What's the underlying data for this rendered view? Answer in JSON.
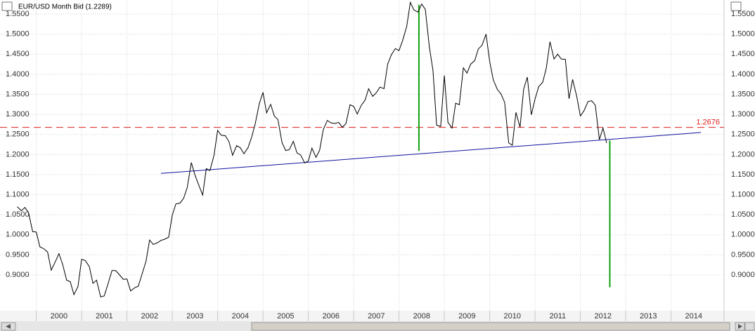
{
  "chart_data": {
    "type": "line",
    "title": "EUR/USD Month Bid (1.2289)",
    "color": "#000000",
    "x": [
      1999.58,
      1999.67,
      1999.75,
      1999.83,
      1999.92,
      2000,
      2000.08,
      2000.17,
      2000.25,
      2000.33,
      2000.42,
      2000.5,
      2000.58,
      2000.67,
      2000.75,
      2000.83,
      2000.92,
      2001,
      2001.08,
      2001.17,
      2001.25,
      2001.33,
      2001.42,
      2001.5,
      2001.58,
      2001.67,
      2001.75,
      2001.83,
      2001.92,
      2002,
      2002.08,
      2002.17,
      2002.25,
      2002.33,
      2002.42,
      2002.5,
      2002.58,
      2002.67,
      2002.75,
      2002.83,
      2002.92,
      2003,
      2003.08,
      2003.17,
      2003.25,
      2003.33,
      2003.42,
      2003.5,
      2003.58,
      2003.67,
      2003.75,
      2003.83,
      2003.92,
      2004,
      2004.08,
      2004.17,
      2004.25,
      2004.33,
      2004.42,
      2004.5,
      2004.58,
      2004.67,
      2004.75,
      2004.83,
      2004.92,
      2005,
      2005.08,
      2005.17,
      2005.25,
      2005.33,
      2005.42,
      2005.5,
      2005.58,
      2005.67,
      2005.75,
      2005.83,
      2005.92,
      2006,
      2006.08,
      2006.17,
      2006.25,
      2006.33,
      2006.42,
      2006.5,
      2006.58,
      2006.67,
      2006.75,
      2006.83,
      2006.92,
      2007,
      2007.08,
      2007.17,
      2007.25,
      2007.33,
      2007.42,
      2007.5,
      2007.58,
      2007.67,
      2007.75,
      2007.83,
      2007.92,
      2008,
      2008.08,
      2008.17,
      2008.25,
      2008.33,
      2008.42,
      2008.5,
      2008.58,
      2008.67,
      2008.75,
      2008.83,
      2008.92,
      2009,
      2009.08,
      2009.17,
      2009.25,
      2009.33,
      2009.42,
      2009.5,
      2009.58,
      2009.67,
      2009.75,
      2009.83,
      2009.92,
      2010,
      2010.08,
      2010.17,
      2010.25,
      2010.33,
      2010.42,
      2010.5,
      2010.58,
      2010.67,
      2010.75,
      2010.83,
      2010.92,
      2011,
      2011.08,
      2011.17,
      2011.25,
      2011.33,
      2011.42,
      2011.5,
      2011.58,
      2011.67,
      2011.75,
      2011.83,
      2011.92,
      2012,
      2012.08,
      2012.17,
      2012.25,
      2012.33,
      2012.42,
      2012.5,
      2012.58
    ],
    "values": [
      1.07,
      1.06,
      1.068,
      1.055,
      1.008,
      1.007,
      0.97,
      0.965,
      0.957,
      0.912,
      0.933,
      0.953,
      0.927,
      0.887,
      0.883,
      0.851,
      0.871,
      0.939,
      0.936,
      0.921,
      0.879,
      0.887,
      0.845,
      0.848,
      0.877,
      0.911,
      0.911,
      0.901,
      0.889,
      0.89,
      0.86,
      0.868,
      0.872,
      0.901,
      0.934,
      0.987,
      0.976,
      0.98,
      0.986,
      0.989,
      0.994,
      1.049,
      1.077,
      1.079,
      1.091,
      1.118,
      1.18,
      1.149,
      1.125,
      1.099,
      1.165,
      1.16,
      1.198,
      1.26,
      1.248,
      1.247,
      1.232,
      1.198,
      1.222,
      1.217,
      1.202,
      1.217,
      1.243,
      1.277,
      1.327,
      1.355,
      1.304,
      1.325,
      1.296,
      1.287,
      1.23,
      1.21,
      1.212,
      1.233,
      1.204,
      1.199,
      1.179,
      1.184,
      1.216,
      1.193,
      1.211,
      1.262,
      1.285,
      1.279,
      1.277,
      1.28,
      1.268,
      1.277,
      1.324,
      1.32,
      1.301,
      1.323,
      1.335,
      1.364,
      1.345,
      1.354,
      1.368,
      1.364,
      1.425,
      1.448,
      1.464,
      1.459,
      1.484,
      1.519,
      1.579,
      1.56,
      1.555,
      1.575,
      1.562,
      1.468,
      1.409,
      1.273,
      1.27,
      1.397,
      1.28,
      1.266,
      1.328,
      1.324,
      1.416,
      1.403,
      1.425,
      1.434,
      1.463,
      1.472,
      1.5,
      1.432,
      1.386,
      1.362,
      1.351,
      1.33,
      1.229,
      1.223,
      1.305,
      1.268,
      1.363,
      1.393,
      1.299,
      1.338,
      1.369,
      1.38,
      1.416,
      1.481,
      1.438,
      1.45,
      1.438,
      1.437,
      1.339,
      1.387,
      1.345,
      1.296,
      1.309,
      1.332,
      1.334,
      1.323,
      1.237,
      1.266,
      1.2289
    ],
    "xlim": [
      1999.2,
      2015.17
    ],
    "xticks": [
      2000,
      2001,
      2002,
      2003,
      2004,
      2005,
      2006,
      2007,
      2008,
      2009,
      2010,
      2011,
      2012,
      2013,
      2014
    ],
    "ylim": [
      0.811,
      1.585
    ],
    "yticks": [
      {
        "value": 0.9,
        "label": "0.9000"
      },
      {
        "value": 0.95,
        "label": "0.9500"
      },
      {
        "value": 1.0,
        "label": "1.0000"
      },
      {
        "value": 1.05,
        "label": "1.0500"
      },
      {
        "value": 1.1,
        "label": "1.1000"
      },
      {
        "value": 1.15,
        "label": "1.1500"
      },
      {
        "value": 1.2,
        "label": "1.2000"
      },
      {
        "value": 1.25,
        "label": "1.2500"
      },
      {
        "value": 1.3,
        "label": "1.3000"
      },
      {
        "value": 1.35,
        "label": "1.3500"
      },
      {
        "value": 1.4,
        "label": "1.4000"
      },
      {
        "value": 1.45,
        "label": "1.4500"
      },
      {
        "value": 1.5,
        "label": "1.5000"
      },
      {
        "value": 1.55,
        "label": "1.5500"
      }
    ],
    "grid": true,
    "hline": {
      "value": 1.2676,
      "color": "#e02020"
    },
    "trendline": {
      "x": [
        2002.75,
        2014.66
      ],
      "y": [
        1.153,
        1.255
      ],
      "color": "#1010a0"
    },
    "vlines": [
      {
        "x": 2008.44,
        "y": [
          1.209,
          1.573
        ],
        "color": "#10a010"
      },
      {
        "x": 2012.65,
        "y": [
          1.235,
          0.869
        ],
        "color": "#10a010"
      }
    ]
  }
}
